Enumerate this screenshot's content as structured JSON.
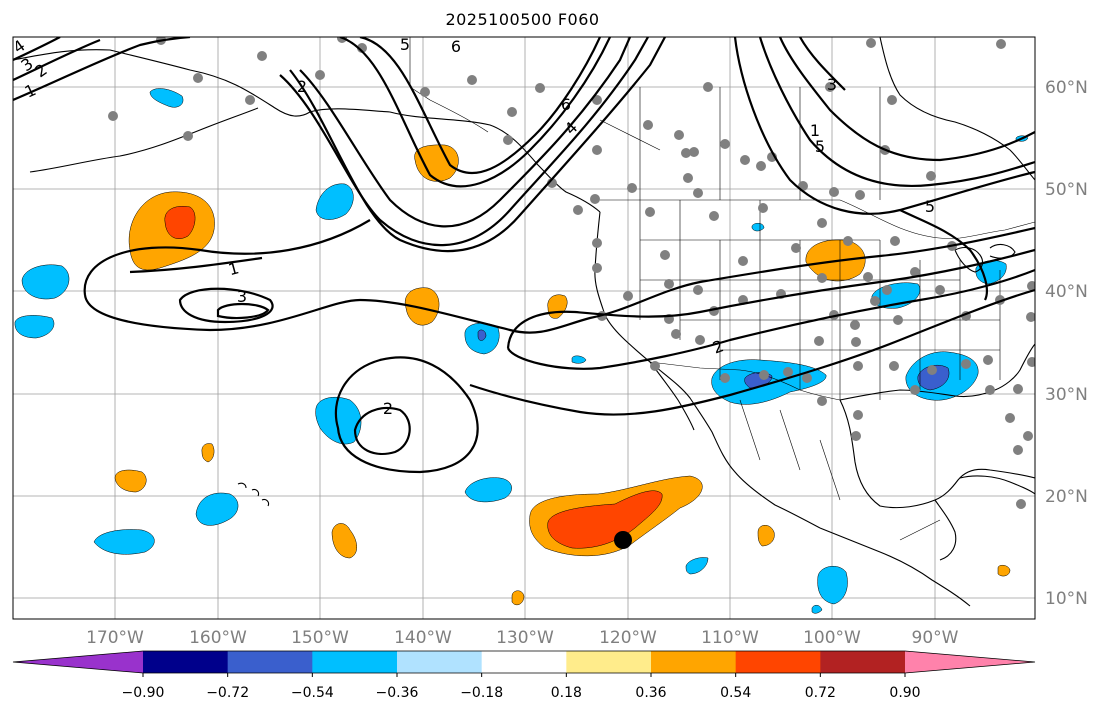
{
  "title": "2025100500 F060",
  "map": {
    "lon_labels": [
      "170°W",
      "160°W",
      "150°W",
      "140°W",
      "130°W",
      "120°W",
      "110°W",
      "100°W",
      "90°W"
    ],
    "lat_labels": [
      "60°N",
      "50°N",
      "40°N",
      "30°N",
      "20°N",
      "10°N"
    ],
    "colorbar": {
      "tick_labels": [
        "−0.90",
        "−0.72",
        "−0.54",
        "−0.36",
        "−0.18",
        "0.18",
        "0.36",
        "0.54",
        "0.72",
        "0.90"
      ],
      "colors": [
        "#9932cc",
        "#00008b",
        "#3a5fcd",
        "#00bfff",
        "#b0e2ff",
        "#ffffff",
        "#ffec8b",
        "#ffa500",
        "#ff4500",
        "#b22222",
        "#ff82ab"
      ]
    },
    "contour_labels": [
      "4",
      "3",
      "2",
      "1",
      "5",
      "6",
      "2",
      "4",
      "6",
      "5",
      "3",
      "1",
      "1",
      "3",
      "2",
      "2",
      "5"
    ],
    "anomaly_colors": {
      "pos_light": "#ffa500",
      "pos_strong": "#ff4500",
      "neg_light": "#00bfff",
      "neg_strong": "#3a5fcd"
    }
  }
}
